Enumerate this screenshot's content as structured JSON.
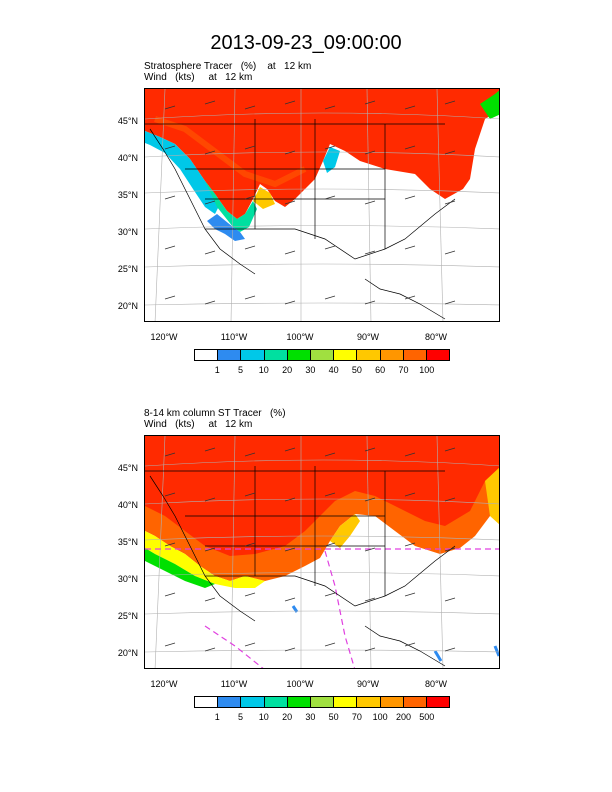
{
  "title": "2013-09-23_09:00:00",
  "panels": [
    {
      "line1": "Stratosphere Tracer   (%)    at   12 km",
      "line2": "Wind   (kts)     at   12 km",
      "lat_labels": [
        "45°N",
        "40°N",
        "35°N",
        "30°N",
        "25°N",
        "20°N"
      ],
      "lon_labels": [
        "120°W",
        "110°W",
        "100°W",
        "90°W",
        "80°W"
      ],
      "colorbar_labels": [
        "1",
        "5",
        "10",
        "20",
        "30",
        "40",
        "50",
        "60",
        "70",
        "100"
      ],
      "colorbar_colors": [
        "#ffffff",
        "#2e8bf0",
        "#00c8e8",
        "#00e0a0",
        "#00e000",
        "#a0e040",
        "#ffff00",
        "#ffc800",
        "#ff9600",
        "#ff6400",
        "#ff0000"
      ]
    },
    {
      "line1": "8-14 km column ST Tracer   (%)",
      "line2": "Wind   (kts)     at   12 km",
      "lat_labels": [
        "45°N",
        "40°N",
        "35°N",
        "30°N",
        "25°N",
        "20°N"
      ],
      "lon_labels": [
        "120°W",
        "110°W",
        "100°W",
        "90°W",
        "80°W"
      ],
      "colorbar_labels": [
        "1",
        "5",
        "10",
        "20",
        "30",
        "50",
        "70",
        "100",
        "200",
        "500"
      ],
      "colorbar_colors": [
        "#ffffff",
        "#2e8bf0",
        "#00c8e8",
        "#00e0a0",
        "#00e000",
        "#a0e040",
        "#ffff00",
        "#ffc800",
        "#ff9600",
        "#ff6400",
        "#ff0000"
      ]
    }
  ]
}
